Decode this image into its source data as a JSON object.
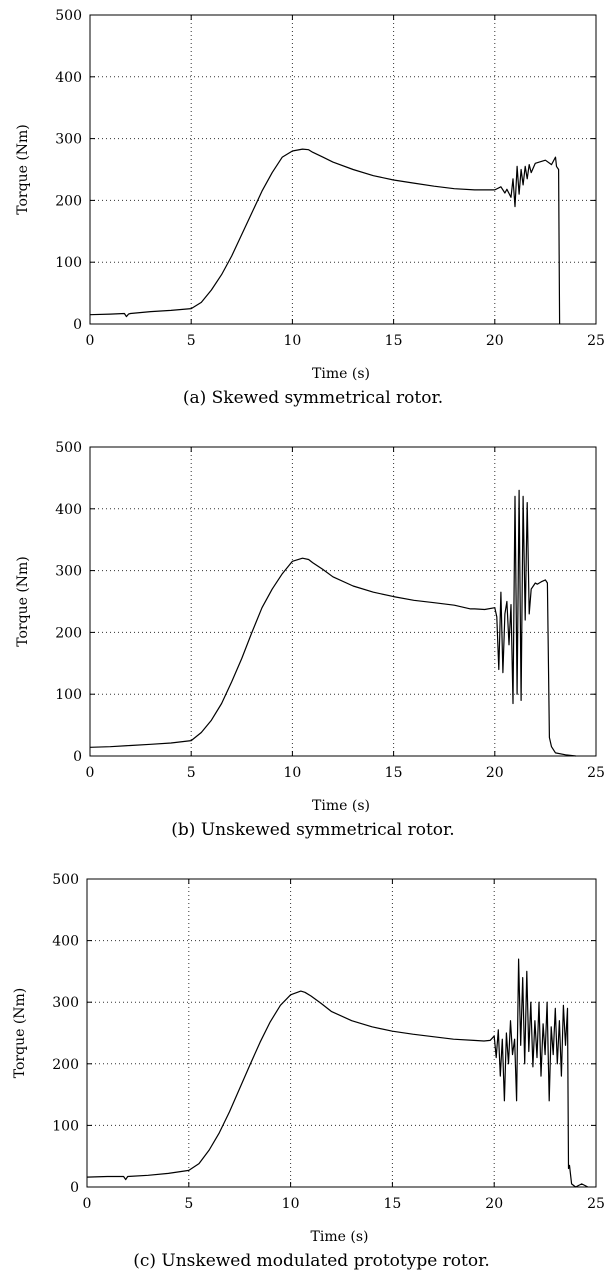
{
  "chart_data": [
    {
      "type": "line",
      "caption": "(a) Skewed symmetrical rotor.",
      "xlabel": "Time (s)",
      "ylabel": "Torque (Nm)",
      "xlim": [
        0,
        25
      ],
      "ylim": [
        0,
        500
      ],
      "xticks": [
        0,
        5,
        10,
        15,
        20,
        25
      ],
      "yticks": [
        0,
        100,
        200,
        300,
        400,
        500
      ],
      "xtick_labels": [
        "0",
        "5",
        "10",
        "15",
        "20",
        "25"
      ],
      "ytick_labels": [
        "0",
        "100",
        "200",
        "300",
        "400",
        "500"
      ],
      "grid": true,
      "series": [
        {
          "name": "torque",
          "x": [
            0,
            1,
            1.7,
            1.8,
            1.9,
            2,
            3,
            4,
            5,
            5.5,
            6,
            6.5,
            7,
            7.5,
            8,
            8.5,
            9,
            9.5,
            10,
            10.5,
            10.8,
            11,
            11.5,
            12,
            13,
            14,
            15,
            16,
            17,
            18,
            19,
            20,
            20.3,
            20.5,
            20.6,
            20.8,
            20.9,
            21.0,
            21.1,
            21.2,
            21.3,
            21.4,
            21.5,
            21.6,
            21.7,
            21.8,
            22,
            22.2,
            22.5,
            22.8,
            23.0,
            23.05,
            23.15,
            23.2
          ],
          "y": [
            15,
            16,
            17,
            12,
            16,
            17,
            20,
            22,
            25,
            35,
            55,
            80,
            110,
            145,
            180,
            215,
            245,
            270,
            280,
            283,
            282,
            278,
            270,
            262,
            250,
            240,
            233,
            228,
            223,
            219,
            217,
            217,
            222,
            212,
            218,
            205,
            235,
            190,
            255,
            210,
            250,
            225,
            255,
            235,
            258,
            245,
            260,
            262,
            265,
            258,
            270,
            255,
            250,
            0
          ]
        }
      ]
    },
    {
      "type": "line",
      "caption": "(b) Unskewed symmetrical rotor.",
      "xlabel": "Time (s)",
      "ylabel": "Torque (Nm)",
      "xlim": [
        0,
        25
      ],
      "ylim": [
        0,
        500
      ],
      "xticks": [
        0,
        5,
        10,
        15,
        20,
        25
      ],
      "yticks": [
        0,
        100,
        200,
        300,
        400,
        500
      ],
      "xtick_labels": [
        "0",
        "5",
        "10",
        "15",
        "20",
        "25"
      ],
      "ytick_labels": [
        "0",
        "100",
        "200",
        "300",
        "400",
        "500"
      ],
      "grid": true,
      "series": [
        {
          "name": "torque",
          "x": [
            0,
            1,
            2,
            3,
            4,
            5,
            5.5,
            6,
            6.5,
            7,
            7.5,
            8,
            8.5,
            9,
            9.5,
            10,
            10.5,
            10.8,
            11,
            11.5,
            12,
            13,
            14,
            15,
            16,
            17,
            18,
            18.8,
            19,
            19.5,
            20,
            20.1,
            20.2,
            20.3,
            20.4,
            20.5,
            20.6,
            20.7,
            20.8,
            20.9,
            21.0,
            21.1,
            21.2,
            21.3,
            21.4,
            21.5,
            21.6,
            21.7,
            21.8,
            21.9,
            22.0,
            22.1,
            22.2,
            22.3,
            22.5,
            22.6,
            22.7,
            22.8,
            23,
            23.5,
            24
          ],
          "y": [
            14,
            15,
            17,
            19,
            21,
            25,
            38,
            58,
            85,
            120,
            158,
            200,
            240,
            270,
            295,
            315,
            320,
            318,
            313,
            302,
            290,
            275,
            265,
            258,
            252,
            248,
            244,
            238,
            238,
            237,
            240,
            225,
            140,
            265,
            135,
            230,
            250,
            180,
            245,
            85,
            420,
            100,
            430,
            90,
            420,
            220,
            410,
            230,
            270,
            275,
            280,
            278,
            280,
            282,
            285,
            280,
            30,
            15,
            5,
            2,
            0
          ]
        }
      ]
    },
    {
      "type": "line",
      "caption": "(c) Unskewed modulated prototype rotor.",
      "xlabel": "Time (s)",
      "ylabel": "Torque (Nm)",
      "xlim": [
        0,
        25
      ],
      "ylim": [
        0,
        500
      ],
      "xticks": [
        0,
        5,
        10,
        15,
        20,
        25
      ],
      "yticks": [
        0,
        100,
        200,
        300,
        400,
        500
      ],
      "xtick_labels": [
        "0",
        "5",
        "10",
        "15",
        "20",
        "25"
      ],
      "ytick_labels": [
        "0",
        "100",
        "200",
        "300",
        "400",
        "500"
      ],
      "grid": true,
      "series": [
        {
          "name": "torque",
          "x": [
            0,
            1,
            1.8,
            1.9,
            2,
            3,
            4,
            5,
            5.5,
            6,
            6.5,
            7,
            7.5,
            8,
            8.5,
            9,
            9.5,
            10,
            10.5,
            10.7,
            11,
            11.5,
            12,
            13,
            14,
            15,
            16,
            17,
            18,
            19,
            19.5,
            19.8,
            20.0,
            20.1,
            20.2,
            20.3,
            20.4,
            20.5,
            20.6,
            20.7,
            20.8,
            20.9,
            21.0,
            21.1,
            21.2,
            21.3,
            21.4,
            21.5,
            21.6,
            21.7,
            21.8,
            21.9,
            22.0,
            22.1,
            22.2,
            22.3,
            22.4,
            22.5,
            22.6,
            22.7,
            22.8,
            22.9,
            23.0,
            23.1,
            23.2,
            23.3,
            23.4,
            23.5,
            23.6,
            23.65,
            23.7,
            23.8,
            24.0,
            24.3,
            24.6
          ],
          "y": [
            16,
            17,
            17,
            12,
            17,
            19,
            22,
            27,
            38,
            60,
            88,
            122,
            160,
            198,
            235,
            268,
            295,
            312,
            318,
            316,
            310,
            298,
            285,
            270,
            260,
            253,
            248,
            244,
            240,
            238,
            237,
            238,
            245,
            210,
            255,
            180,
            240,
            140,
            250,
            200,
            270,
            215,
            240,
            140,
            370,
            230,
            340,
            200,
            350,
            220,
            300,
            195,
            270,
            210,
            300,
            180,
            265,
            215,
            300,
            140,
            260,
            215,
            290,
            200,
            270,
            180,
            295,
            230,
            290,
            30,
            35,
            5,
            0,
            5,
            0
          ]
        }
      ]
    }
  ]
}
